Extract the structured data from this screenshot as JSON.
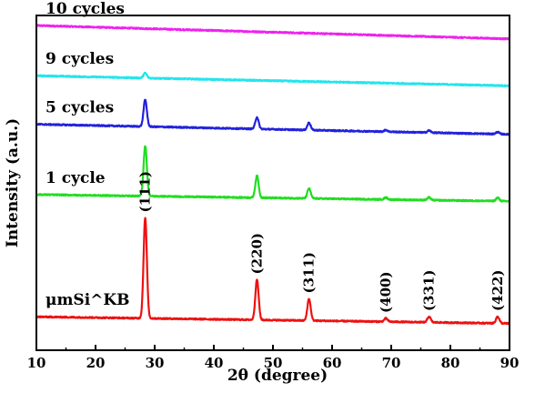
{
  "chart_data": {
    "type": "line",
    "xlabel": "2θ (degree)",
    "ylabel": "Intensity (a.u.)",
    "xlim": [
      10,
      90
    ],
    "xticks": [
      10,
      20,
      30,
      40,
      50,
      60,
      70,
      80,
      90
    ],
    "grid": false,
    "legend": "none (series labels drawn above each trace)",
    "series": [
      {
        "name": "10 cycles",
        "color": "#ee22ee",
        "baseline": [
          [
            10,
            0.97
          ],
          [
            90,
            0.93
          ]
        ],
        "peaks": []
      },
      {
        "name": "9 cycles",
        "color": "#22e5ee",
        "baseline": [
          [
            10,
            0.82
          ],
          [
            90,
            0.79
          ]
        ],
        "peaks": [
          {
            "x": 28.4,
            "h": 0.015
          }
        ]
      },
      {
        "name": "5 cycles",
        "color": "#2222dd",
        "baseline": [
          [
            10,
            0.675
          ],
          [
            90,
            0.645
          ]
        ],
        "peaks": [
          {
            "x": 28.4,
            "h": 0.08
          },
          {
            "x": 47.3,
            "h": 0.035
          },
          {
            "x": 56.1,
            "h": 0.022
          },
          {
            "x": 69.1,
            "h": 0.005
          },
          {
            "x": 76.4,
            "h": 0.006
          },
          {
            "x": 88.0,
            "h": 0.006
          }
        ]
      },
      {
        "name": "1 cycle",
        "color": "#22dd22",
        "baseline": [
          [
            10,
            0.465
          ],
          [
            90,
            0.445
          ]
        ],
        "peaks": [
          {
            "x": 28.4,
            "h": 0.15
          },
          {
            "x": 47.3,
            "h": 0.065
          },
          {
            "x": 56.1,
            "h": 0.03
          },
          {
            "x": 69.1,
            "h": 0.006
          },
          {
            "x": 76.4,
            "h": 0.008
          },
          {
            "x": 88.0,
            "h": 0.01
          }
        ]
      },
      {
        "name": "μmSi^KB",
        "color": "#ee1111",
        "baseline": [
          [
            10,
            0.1
          ],
          [
            90,
            0.08
          ]
        ],
        "peaks": [
          {
            "x": 28.4,
            "h": 0.3
          },
          {
            "x": 47.3,
            "h": 0.12
          },
          {
            "x": 56.1,
            "h": 0.065
          },
          {
            "x": 69.1,
            "h": 0.01
          },
          {
            "x": 76.4,
            "h": 0.017
          },
          {
            "x": 88.0,
            "h": 0.02
          }
        ]
      }
    ],
    "annotations": [
      {
        "text": "(111)",
        "x": 28.4
      },
      {
        "text": "(220)",
        "x": 47.3
      },
      {
        "text": "(311)",
        "x": 56.1
      },
      {
        "text": "(400)",
        "x": 69.1
      },
      {
        "text": "(331)",
        "x": 76.4
      },
      {
        "text": "(422)",
        "x": 88.0
      }
    ]
  }
}
